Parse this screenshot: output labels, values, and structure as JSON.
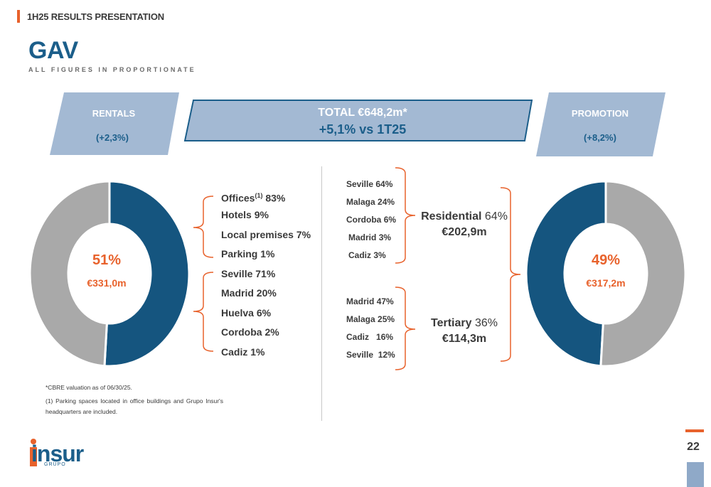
{
  "header": {
    "title": "1H25 RESULTS PRESENTATION"
  },
  "page": {
    "title": "GAV",
    "subtitle": "ALL FIGURES IN PROPORTIONATE",
    "number": "22"
  },
  "banner": {
    "left": {
      "title": "RENTALS",
      "change": "(+2,3%)"
    },
    "center": {
      "line1": "TOTAL €648,2m*",
      "line2": "+5,1% vs 1T25"
    },
    "right": {
      "title": "PROMOTION",
      "change": "(+8,2%)"
    }
  },
  "rentals": {
    "pct_label": "51%",
    "amount": "€331,0m",
    "by_type": [
      {
        "label": "Offices",
        "sup": "(1)",
        "value": "83%"
      },
      {
        "label": "Hotels",
        "value": "9%"
      },
      {
        "label": "Local premises",
        "value": "7%"
      },
      {
        "label": "Parking",
        "value": "1%"
      }
    ],
    "by_city": [
      {
        "label": "Seville",
        "value": "71%"
      },
      {
        "label": "Madrid",
        "value": "20%"
      },
      {
        "label": "Huelva",
        "value": "6%"
      },
      {
        "label": "Cordoba",
        "value": "2%"
      },
      {
        "label": "Cadiz",
        "value": "1%"
      }
    ]
  },
  "promotion": {
    "pct_label": "49%",
    "amount": "€317,2m",
    "residential": {
      "title": "Residential",
      "share": "64%",
      "amount": "€202,9m",
      "cities": [
        {
          "label": "Seville",
          "value": "64%"
        },
        {
          "label": "Malaga",
          "value": "24%"
        },
        {
          "label": "Cordoba",
          "value": "6%"
        },
        {
          "label": "Madrid",
          "value": "3%"
        },
        {
          "label": "Cadiz",
          "value": "3%"
        }
      ]
    },
    "tertiary": {
      "title": "Tertiary",
      "share": "36%",
      "amount": "€114,3m",
      "cities": [
        {
          "label": "Madrid",
          "value": "47%"
        },
        {
          "label": "Malaga",
          "value": "25%"
        },
        {
          "label": "Cadiz",
          "value": "16%"
        },
        {
          "label": "Seville",
          "value": "12%"
        }
      ]
    }
  },
  "footnotes": {
    "cbre": "*CBRE valuation as of 06/30/25.",
    "note1": "(1) Parking spaces located in office buildings and Grupo Insur's headquarters are included."
  },
  "logo": {
    "text": "insur",
    "sub": "GRUPO"
  },
  "colors": {
    "accent": "#e8622c",
    "brand_blue": "#1b5e8a",
    "highlight_segment": "#15557f",
    "rest_segment": "#a9a9a9",
    "banner_fill": "#a3b9d3"
  },
  "chart_data": [
    {
      "type": "pie",
      "variant": "donut",
      "values": [
        51,
        49
      ],
      "highlight_index": 0,
      "center_labels": [
        "51%",
        "€331,0m"
      ]
    },
    {
      "type": "pie",
      "variant": "donut",
      "values": [
        49,
        51
      ],
      "highlight_index": 0,
      "center_labels": [
        "49%",
        "€317,2m"
      ]
    }
  ]
}
